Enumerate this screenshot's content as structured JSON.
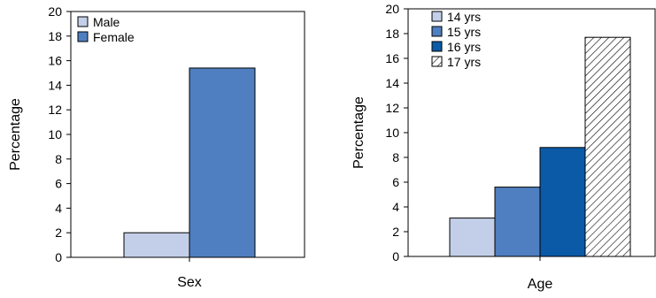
{
  "chart_data": [
    {
      "type": "bar",
      "xlabel": "Sex",
      "ylabel": "Percentage",
      "ylim": [
        0,
        20
      ],
      "yticks": [
        0,
        2,
        4,
        6,
        8,
        10,
        12,
        14,
        16,
        18,
        20
      ],
      "legend_position": "top-left",
      "grid": false,
      "series": [
        {
          "name": "Male",
          "value": 2.0,
          "color": "#c3cfe8",
          "pattern": "solid"
        },
        {
          "name": "Female",
          "value": 15.4,
          "color": "#4f7fc0",
          "pattern": "solid"
        }
      ]
    },
    {
      "type": "bar",
      "xlabel": "Age",
      "ylabel": "Percentage",
      "ylim": [
        0,
        20
      ],
      "yticks": [
        0,
        2,
        4,
        6,
        8,
        10,
        12,
        14,
        16,
        18,
        20
      ],
      "legend_position": "top-left",
      "grid": false,
      "series": [
        {
          "name": "14 yrs",
          "value": 3.1,
          "color": "#c3cfe8",
          "pattern": "solid"
        },
        {
          "name": "15 yrs",
          "value": 5.6,
          "color": "#4f7fc0",
          "pattern": "solid"
        },
        {
          "name": "16 yrs",
          "value": 8.8,
          "color": "#0a5aa8",
          "pattern": "solid"
        },
        {
          "name": "17 yrs",
          "value": 17.7,
          "color": "#ffffff",
          "pattern": "hatch"
        }
      ]
    }
  ]
}
